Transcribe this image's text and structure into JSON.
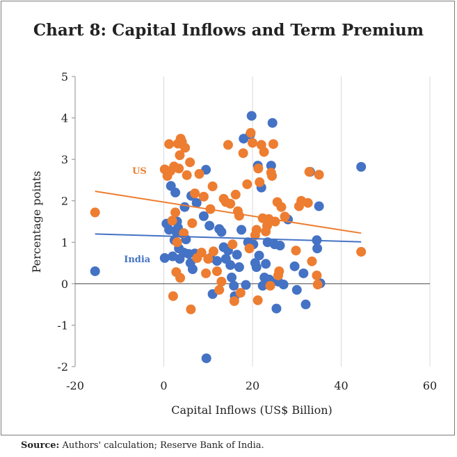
{
  "chart_data": {
    "type": "scatter",
    "title": "Chart 8: Capital Inflows and Term Premium",
    "xlabel": "Capital Inflows (US$ Billion)",
    "ylabel": "Percentage points",
    "xlim": [
      -20,
      60
    ],
    "ylim": [
      -2,
      5
    ],
    "xticks": [
      "-20",
      "0",
      "20",
      "40",
      "60"
    ],
    "yticks": [
      "-2",
      "-1",
      "0",
      "1",
      "2",
      "3",
      "4",
      "5"
    ],
    "grid": "vertical",
    "series": [
      {
        "name": "India",
        "color": "#4472c4",
        "trend": [
          [
            -15.5,
            1.2
          ],
          [
            44.5,
            1.01
          ]
        ],
        "points": [
          [
            -15.5,
            0.3
          ],
          [
            0.2,
            0.62
          ],
          [
            0.6,
            1.45
          ],
          [
            1.2,
            1.3
          ],
          [
            1.6,
            2.36
          ],
          [
            2,
            0.66
          ],
          [
            2.4,
            1.05
          ],
          [
            2.6,
            2.2
          ],
          [
            2.8,
            1.25
          ],
          [
            3,
            1.5
          ],
          [
            3.2,
            1.35
          ],
          [
            3.4,
            0.85
          ],
          [
            3.6,
            0.6
          ],
          [
            4,
            1.22
          ],
          [
            4.5,
            0.75
          ],
          [
            4.7,
            1.85
          ],
          [
            5,
            1.07
          ],
          [
            5.6,
            0.72
          ],
          [
            6,
            0.5
          ],
          [
            6.2,
            2.12
          ],
          [
            6.5,
            0.35
          ],
          [
            7,
            0.73
          ],
          [
            7.4,
            1.95
          ],
          [
            9,
            1.63
          ],
          [
            9.5,
            2.75
          ],
          [
            9.6,
            -1.8
          ],
          [
            10.3,
            1.4
          ],
          [
            10.5,
            0.62
          ],
          [
            11,
            -0.25
          ],
          [
            12,
            0.55
          ],
          [
            12.5,
            1.32
          ],
          [
            13,
            1.25
          ],
          [
            13.5,
            0.88
          ],
          [
            14,
            0.6
          ],
          [
            14.5,
            0.8
          ],
          [
            15,
            0.45
          ],
          [
            15.3,
            0.15
          ],
          [
            15.8,
            -0.05
          ],
          [
            16,
            -0.3
          ],
          [
            16.5,
            0.7
          ],
          [
            17,
            0.4
          ],
          [
            17.5,
            1.3
          ],
          [
            18,
            3.5
          ],
          [
            18.5,
            -0.03
          ],
          [
            19,
            1.0
          ],
          [
            19.5,
            3.6
          ],
          [
            19.8,
            4.05
          ],
          [
            20.2,
            0.95
          ],
          [
            20.6,
            0.5
          ],
          [
            20.9,
            0.4
          ],
          [
            21.2,
            2.85
          ],
          [
            21.5,
            0.68
          ],
          [
            22,
            2.32
          ],
          [
            22.3,
            -0.05
          ],
          [
            22.7,
            0.15
          ],
          [
            23,
            0.48
          ],
          [
            23.4,
            1.0
          ],
          [
            23.8,
            0.1
          ],
          [
            24.2,
            2.85
          ],
          [
            24.5,
            3.88
          ],
          [
            25,
            0.95
          ],
          [
            25.4,
            -0.6
          ],
          [
            25.8,
            0.05
          ],
          [
            26.2,
            0.92
          ],
          [
            27,
            -0.02
          ],
          [
            28,
            1.55
          ],
          [
            29.5,
            0.42
          ],
          [
            30,
            -0.15
          ],
          [
            31.5,
            0.25
          ],
          [
            32,
            -0.5
          ],
          [
            33,
            2.7
          ],
          [
            34.5,
            1.05
          ],
          [
            34.6,
            0.85
          ],
          [
            35,
            1.87
          ],
          [
            35.3,
            0.01
          ],
          [
            44.5,
            2.82
          ]
        ]
      },
      {
        "name": "US",
        "color": "#ed7d31",
        "trend": [
          [
            -15.5,
            2.23
          ],
          [
            44.5,
            1.22
          ]
        ],
        "points": [
          [
            -15.5,
            1.72
          ],
          [
            0.2,
            2.76
          ],
          [
            0.8,
            2.6
          ],
          [
            1.2,
            3.37
          ],
          [
            1.5,
            2.72
          ],
          [
            1.9,
            1.52
          ],
          [
            2.1,
            -0.3
          ],
          [
            2.3,
            2.83
          ],
          [
            2.6,
            1.72
          ],
          [
            2.8,
            0.28
          ],
          [
            3,
            1.0
          ],
          [
            3.2,
            3.38
          ],
          [
            3.4,
            2.78
          ],
          [
            3.6,
            3.1
          ],
          [
            3.7,
            0.14
          ],
          [
            3.8,
            3.5
          ],
          [
            4.1,
            3.42
          ],
          [
            4.5,
            1.22
          ],
          [
            4.8,
            3.28
          ],
          [
            5.2,
            2.62
          ],
          [
            5.9,
            2.93
          ],
          [
            6.1,
            -0.62
          ],
          [
            6.4,
            1.46
          ],
          [
            7,
            2.18
          ],
          [
            7.5,
            0.62
          ],
          [
            8,
            2.65
          ],
          [
            8.5,
            0.75
          ],
          [
            9,
            2.1
          ],
          [
            9.5,
            0.25
          ],
          [
            10,
            0.6
          ],
          [
            10.5,
            1.8
          ],
          [
            11,
            2.35
          ],
          [
            11.2,
            0.78
          ],
          [
            12,
            0.3
          ],
          [
            12.5,
            -0.15
          ],
          [
            13,
            0.05
          ],
          [
            13.5,
            2.05
          ],
          [
            14,
            1.97
          ],
          [
            14.5,
            3.35
          ],
          [
            15,
            1.93
          ],
          [
            15.5,
            0.95
          ],
          [
            15.9,
            -0.42
          ],
          [
            16.2,
            2.15
          ],
          [
            16.7,
            1.75
          ],
          [
            17,
            1.64
          ],
          [
            17.3,
            -0.22
          ],
          [
            17.9,
            3.15
          ],
          [
            18.8,
            2.4
          ],
          [
            19.3,
            0.85
          ],
          [
            19.6,
            3.64
          ],
          [
            20,
            3.4
          ],
          [
            20.6,
            1.17
          ],
          [
            20.9,
            1.3
          ],
          [
            21.2,
            -0.4
          ],
          [
            21.3,
            2.78
          ],
          [
            21.6,
            2.45
          ],
          [
            22,
            3.35
          ],
          [
            22.3,
            1.58
          ],
          [
            22.6,
            3.18
          ],
          [
            23,
            1.26
          ],
          [
            23.3,
            1.4
          ],
          [
            23.7,
            1.56
          ],
          [
            24,
            -0.05
          ],
          [
            24.2,
            2.68
          ],
          [
            24.4,
            2.6
          ],
          [
            24.7,
            3.37
          ],
          [
            25.1,
            1.5
          ],
          [
            25.6,
            1.97
          ],
          [
            25.8,
            0.2
          ],
          [
            26,
            0.3
          ],
          [
            26.5,
            1.85
          ],
          [
            27.3,
            1.62
          ],
          [
            29.8,
            0.8
          ],
          [
            30.5,
            1.87
          ],
          [
            31,
            2.0
          ],
          [
            32.5,
            1.95
          ],
          [
            32.8,
            2.7
          ],
          [
            33.4,
            0.54
          ],
          [
            34.5,
            0.2
          ],
          [
            34.7,
            -0.02
          ],
          [
            35,
            2.63
          ],
          [
            44.5,
            0.77
          ]
        ]
      }
    ],
    "annotations": [
      {
        "text": "US",
        "series": "US",
        "x": -5.5,
        "y": 2.65
      },
      {
        "text": "India",
        "series": "India",
        "x": -6,
        "y": 0.52
      }
    ]
  },
  "source": {
    "label": "Source:",
    "text": " Authors' calculation; Reserve Bank of India."
  }
}
